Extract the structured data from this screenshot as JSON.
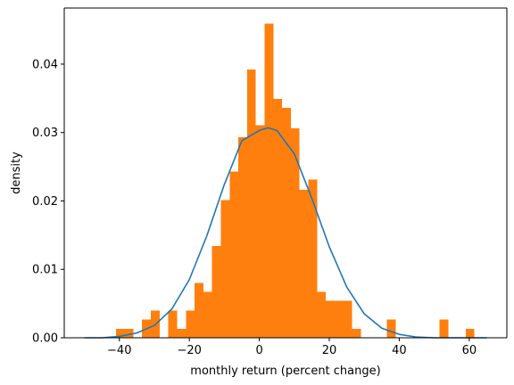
{
  "chart_data": {
    "type": "bar",
    "xlabel": "monthly return (percent change)",
    "ylabel": "density",
    "xlim": [
      -55.75,
      70.75
    ],
    "ylim": [
      0,
      0.0482
    ],
    "grid": false,
    "x_ticks": [
      -40,
      -20,
      0,
      20,
      40,
      60
    ],
    "x_tick_labels": [
      "−40",
      "−20",
      "0",
      "20",
      "40",
      "60"
    ],
    "y_ticks": [
      0,
      0.01,
      0.02,
      0.03,
      0.04
    ],
    "y_tick_labels": [
      "0.00",
      "0.01",
      "0.02",
      "0.03",
      "0.04"
    ],
    "histogram": {
      "name": "",
      "color": "#ff7f0e",
      "bin_edges": [
        -41.0,
        -38.5,
        -36.0,
        -33.5,
        -31.0,
        -28.5,
        -26.0,
        -23.5,
        -21.0,
        -18.5,
        -16.0,
        -13.5,
        -11.0,
        -8.5,
        -6.0,
        -3.5,
        -1.0,
        1.5,
        4.0,
        6.5,
        9.0,
        11.5,
        14.0,
        16.5,
        19.0,
        21.5,
        24.0,
        26.5,
        29.0,
        31.5,
        34.0,
        36.5,
        39.0,
        41.5,
        44.0,
        46.5,
        49.0,
        51.5,
        54.0,
        56.5,
        59.0,
        61.5
      ],
      "values": [
        0.0013,
        0.0013,
        0.0,
        0.0027,
        0.004,
        0.0,
        0.004,
        0.0013,
        0.004,
        0.008,
        0.0067,
        0.0134,
        0.0201,
        0.0243,
        0.0293,
        0.0392,
        0.0311,
        0.0459,
        0.0349,
        0.0336,
        0.0306,
        0.0216,
        0.0231,
        0.0067,
        0.0054,
        0.0054,
        0.0054,
        0.0013,
        0.0,
        0.0,
        0.0,
        0.0027,
        0.0,
        0.0,
        0.0,
        0.0,
        0.0,
        0.0027,
        0.0,
        0.0,
        0.0013
      ]
    },
    "curve": {
      "name": "",
      "type": "line",
      "color": "#1f77b4",
      "x": [
        -50,
        -45,
        -40,
        -35,
        -30,
        -25,
        -20,
        -15,
        -10,
        -5,
        0,
        2.5,
        5,
        10,
        15,
        20,
        25,
        30,
        35,
        40,
        45,
        50,
        55,
        60,
        65
      ],
      "y": [
        0.0,
        0.0,
        0.0002,
        0.0007,
        0.0018,
        0.0042,
        0.0085,
        0.0149,
        0.0224,
        0.0288,
        0.0303,
        0.0307,
        0.0303,
        0.0269,
        0.0204,
        0.0133,
        0.0074,
        0.0035,
        0.0014,
        0.0005,
        0.0001,
        0.0,
        0.0,
        0.0,
        0.0
      ]
    }
  }
}
